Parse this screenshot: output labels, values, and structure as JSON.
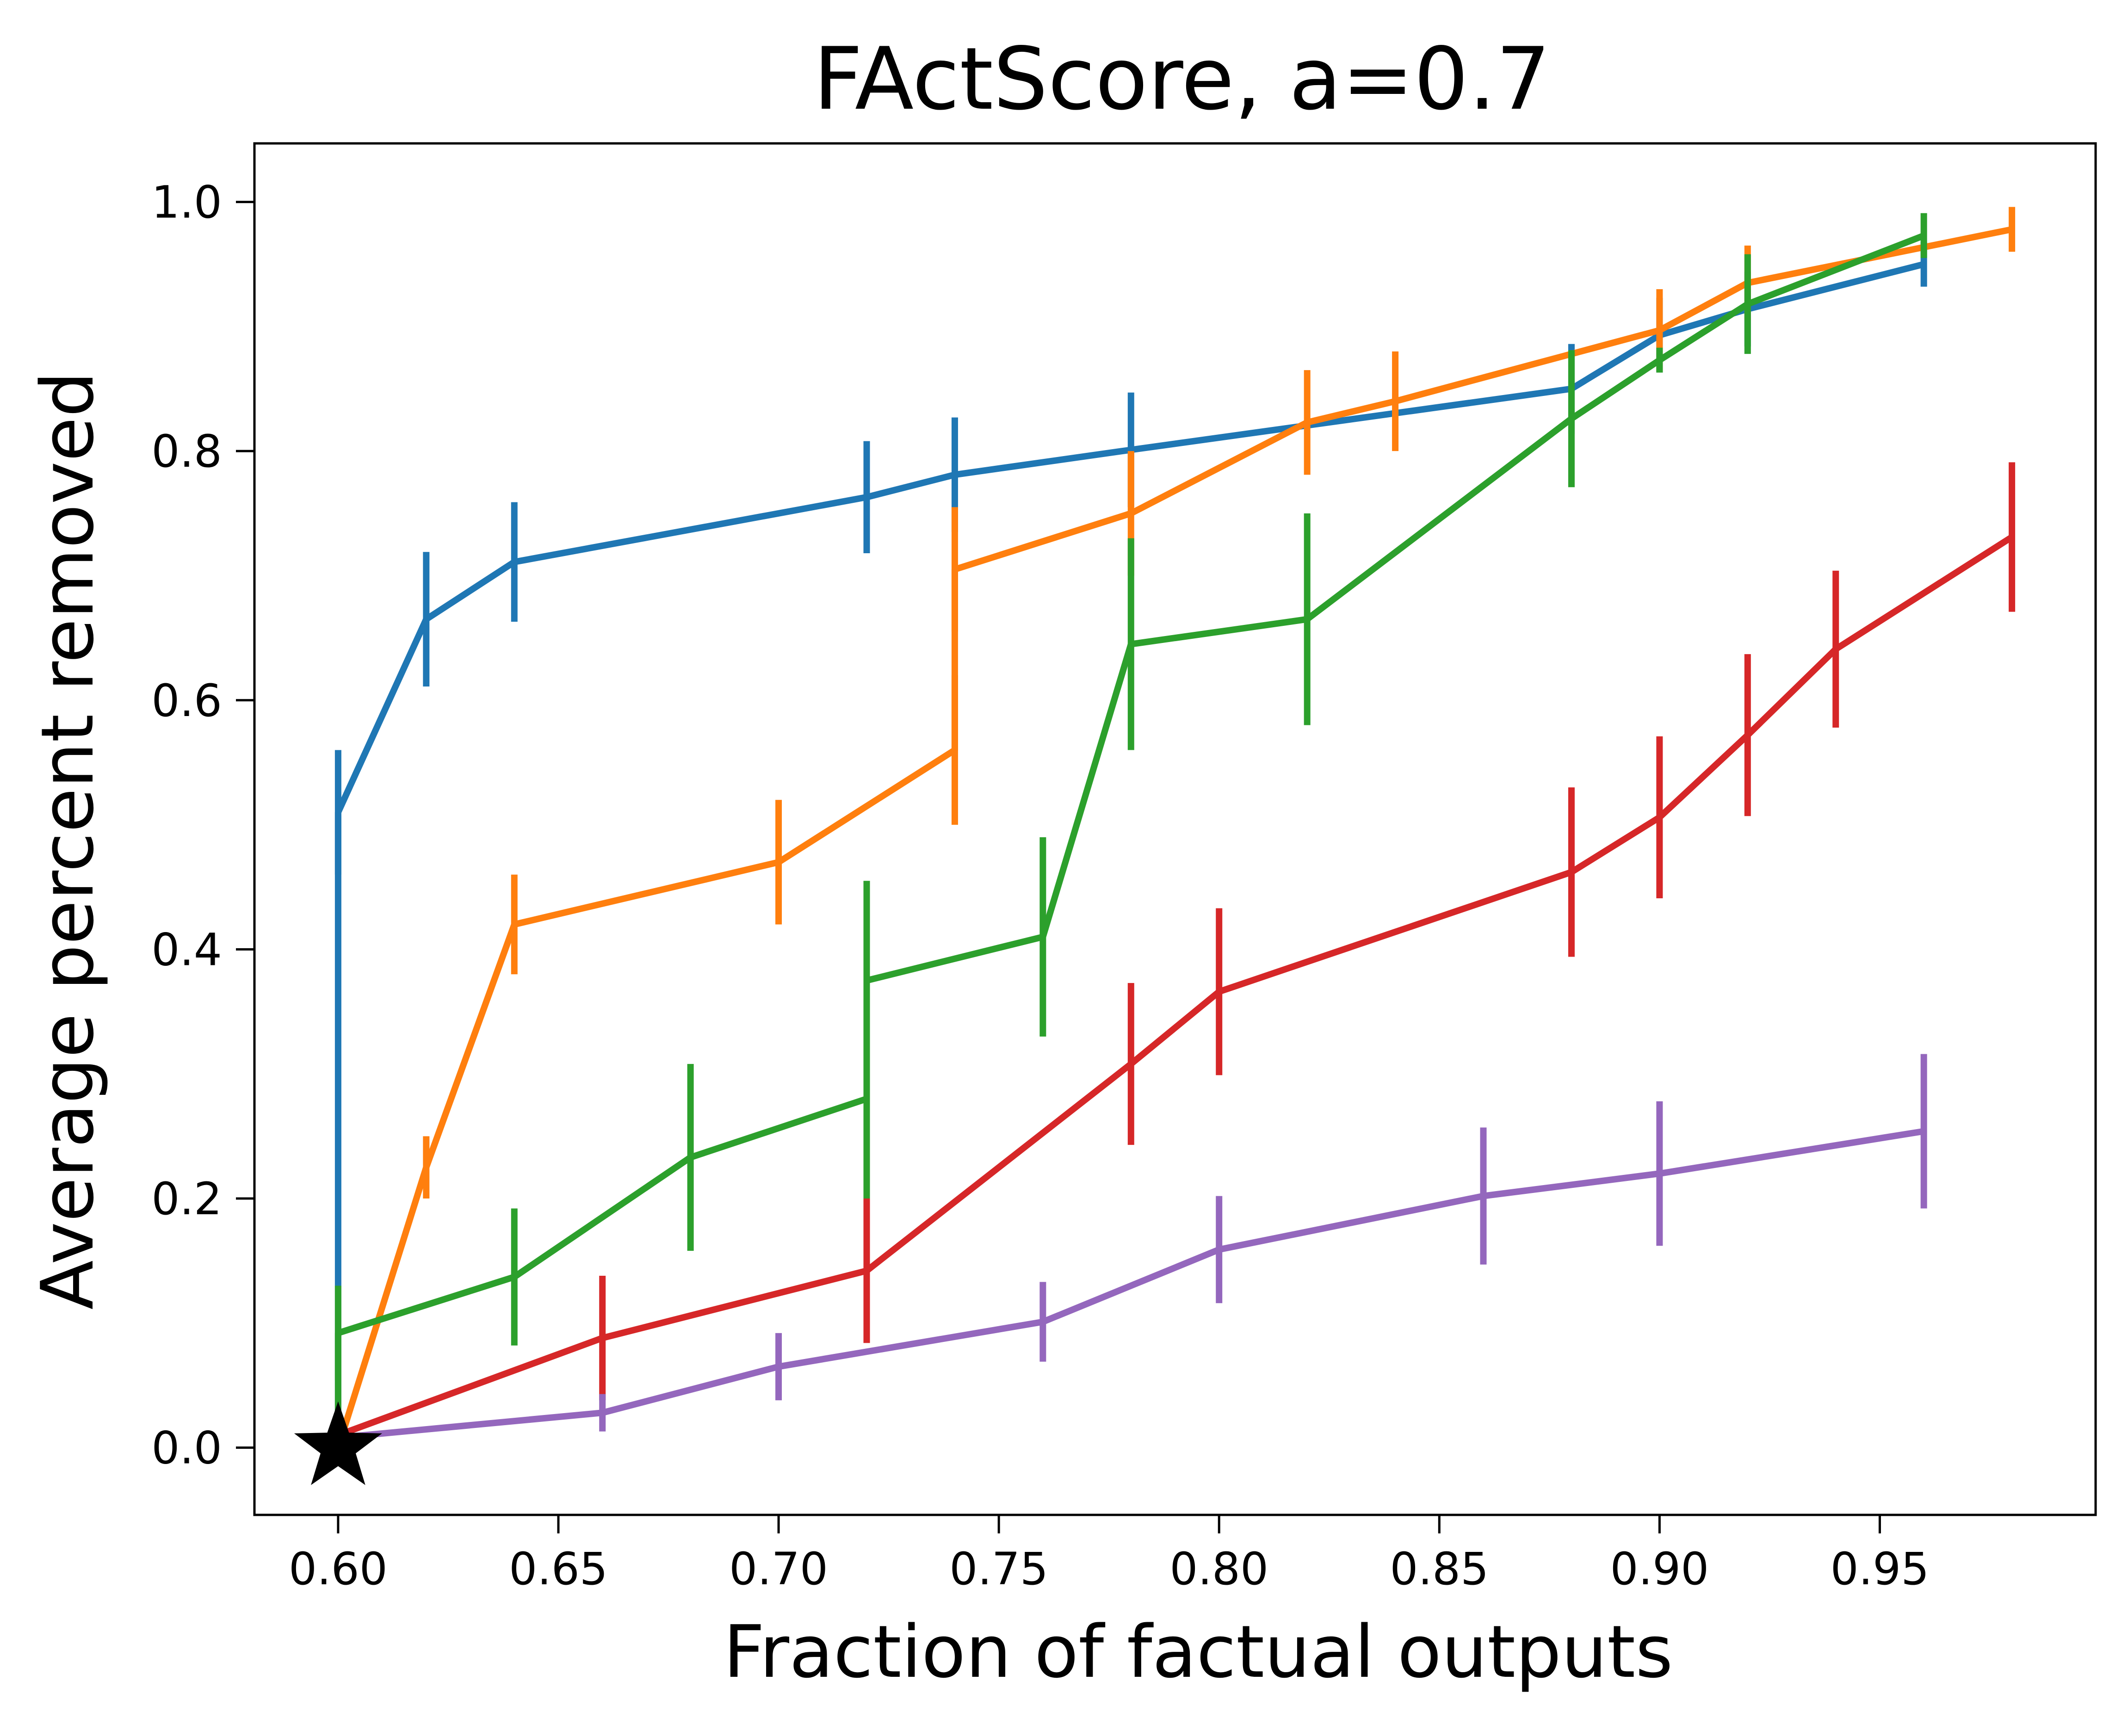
{
  "chart_data": {
    "type": "line",
    "title": "FActScore, a=0.7",
    "xlabel": "Fraction of factual outputs",
    "ylabel": "Average percent removed",
    "xlim": [
      0.581,
      0.999
    ],
    "ylim": [
      -0.054,
      1.047
    ],
    "grid": false,
    "legend": "none",
    "xticks": [
      0.6,
      0.65,
      0.7,
      0.75,
      0.8,
      0.85,
      0.9,
      0.95
    ],
    "xtick_labels": [
      "0.60",
      "0.65",
      "0.70",
      "0.75",
      "0.80",
      "0.85",
      "0.90",
      "0.95"
    ],
    "yticks": [
      0.0,
      0.2,
      0.4,
      0.6,
      0.8,
      1.0
    ],
    "ytick_labels": [
      "0.0",
      "0.2",
      "0.4",
      "0.6",
      "0.8",
      "1.0"
    ],
    "series": [
      {
        "name": "series-1",
        "color": "#1f77b4",
        "points": [
          {
            "x": 0.6,
            "y": 0.0,
            "err": 0.0
          },
          {
            "x": 0.6,
            "y": 0.51,
            "err": 0.05
          },
          {
            "x": 0.62,
            "y": 0.665,
            "err": 0.054
          },
          {
            "x": 0.64,
            "y": 0.711,
            "err": 0.048
          },
          {
            "x": 0.72,
            "y": 0.763,
            "err": 0.045
          },
          {
            "x": 0.74,
            "y": 0.781,
            "err": 0.046
          },
          {
            "x": 0.78,
            "y": 0.801,
            "err": 0.046
          },
          {
            "x": 0.88,
            "y": 0.85,
            "err": 0.036
          },
          {
            "x": 0.9,
            "y": 0.893,
            "err": 0.03
          },
          {
            "x": 0.92,
            "y": 0.914,
            "err": 0.03
          },
          {
            "x": 0.96,
            "y": 0.95,
            "err": 0.018
          }
        ]
      },
      {
        "name": "series-2",
        "color": "#ff7f0e",
        "points": [
          {
            "x": 0.6,
            "y": 0.0,
            "err": 0.0
          },
          {
            "x": 0.62,
            "y": 0.225,
            "err": 0.025
          },
          {
            "x": 0.64,
            "y": 0.42,
            "err": 0.04
          },
          {
            "x": 0.7,
            "y": 0.47,
            "err": 0.05
          },
          {
            "x": 0.74,
            "y": 0.56,
            "err": 0.06
          },
          {
            "x": 0.74,
            "y": 0.705,
            "err": 0.05
          },
          {
            "x": 0.78,
            "y": 0.75,
            "err": 0.05
          },
          {
            "x": 0.82,
            "y": 0.823,
            "err": 0.042
          },
          {
            "x": 0.84,
            "y": 0.84,
            "err": 0.04
          },
          {
            "x": 0.9,
            "y": 0.897,
            "err": 0.033
          },
          {
            "x": 0.92,
            "y": 0.935,
            "err": 0.03
          },
          {
            "x": 0.98,
            "y": 0.978,
            "err": 0.018
          }
        ]
      },
      {
        "name": "series-3",
        "color": "#2ca02c",
        "points": [
          {
            "x": 0.6,
            "y": 0.0,
            "err": 0.0
          },
          {
            "x": 0.6,
            "y": 0.092,
            "err": 0.038
          },
          {
            "x": 0.64,
            "y": 0.137,
            "err": 0.055
          },
          {
            "x": 0.68,
            "y": 0.233,
            "err": 0.075
          },
          {
            "x": 0.72,
            "y": 0.28,
            "err": 0.08
          },
          {
            "x": 0.72,
            "y": 0.375,
            "err": 0.08
          },
          {
            "x": 0.76,
            "y": 0.41,
            "err": 0.08
          },
          {
            "x": 0.78,
            "y": 0.645,
            "err": 0.085
          },
          {
            "x": 0.82,
            "y": 0.665,
            "err": 0.085
          },
          {
            "x": 0.88,
            "y": 0.826,
            "err": 0.055
          },
          {
            "x": 0.9,
            "y": 0.873,
            "err": 0.01
          },
          {
            "x": 0.92,
            "y": 0.918,
            "err": 0.04
          },
          {
            "x": 0.96,
            "y": 0.973,
            "err": 0.018
          }
        ]
      },
      {
        "name": "series-4",
        "color": "#d62728",
        "points": [
          {
            "x": 0.6,
            "y": 0.01,
            "err": 0.0
          },
          {
            "x": 0.66,
            "y": 0.088,
            "err": 0.05
          },
          {
            "x": 0.72,
            "y": 0.142,
            "err": 0.058
          },
          {
            "x": 0.78,
            "y": 0.308,
            "err": 0.065
          },
          {
            "x": 0.8,
            "y": 0.366,
            "err": 0.067
          },
          {
            "x": 0.88,
            "y": 0.462,
            "err": 0.068
          },
          {
            "x": 0.9,
            "y": 0.506,
            "err": 0.065
          },
          {
            "x": 0.92,
            "y": 0.572,
            "err": 0.065
          },
          {
            "x": 0.94,
            "y": 0.641,
            "err": 0.063
          },
          {
            "x": 0.98,
            "y": 0.731,
            "err": 0.06
          }
        ]
      },
      {
        "name": "series-5",
        "color": "#9467bd",
        "points": [
          {
            "x": 0.6,
            "y": 0.008,
            "err": 0.0
          },
          {
            "x": 0.66,
            "y": 0.028,
            "err": 0.015
          },
          {
            "x": 0.7,
            "y": 0.065,
            "err": 0.027
          },
          {
            "x": 0.76,
            "y": 0.101,
            "err": 0.032
          },
          {
            "x": 0.8,
            "y": 0.159,
            "err": 0.043
          },
          {
            "x": 0.86,
            "y": 0.202,
            "err": 0.055
          },
          {
            "x": 0.9,
            "y": 0.22,
            "err": 0.058
          },
          {
            "x": 0.96,
            "y": 0.254,
            "err": 0.062
          }
        ]
      }
    ],
    "marker": {
      "name": "star-marker",
      "x": 0.6,
      "y": 0.0,
      "color": "#000000"
    }
  }
}
